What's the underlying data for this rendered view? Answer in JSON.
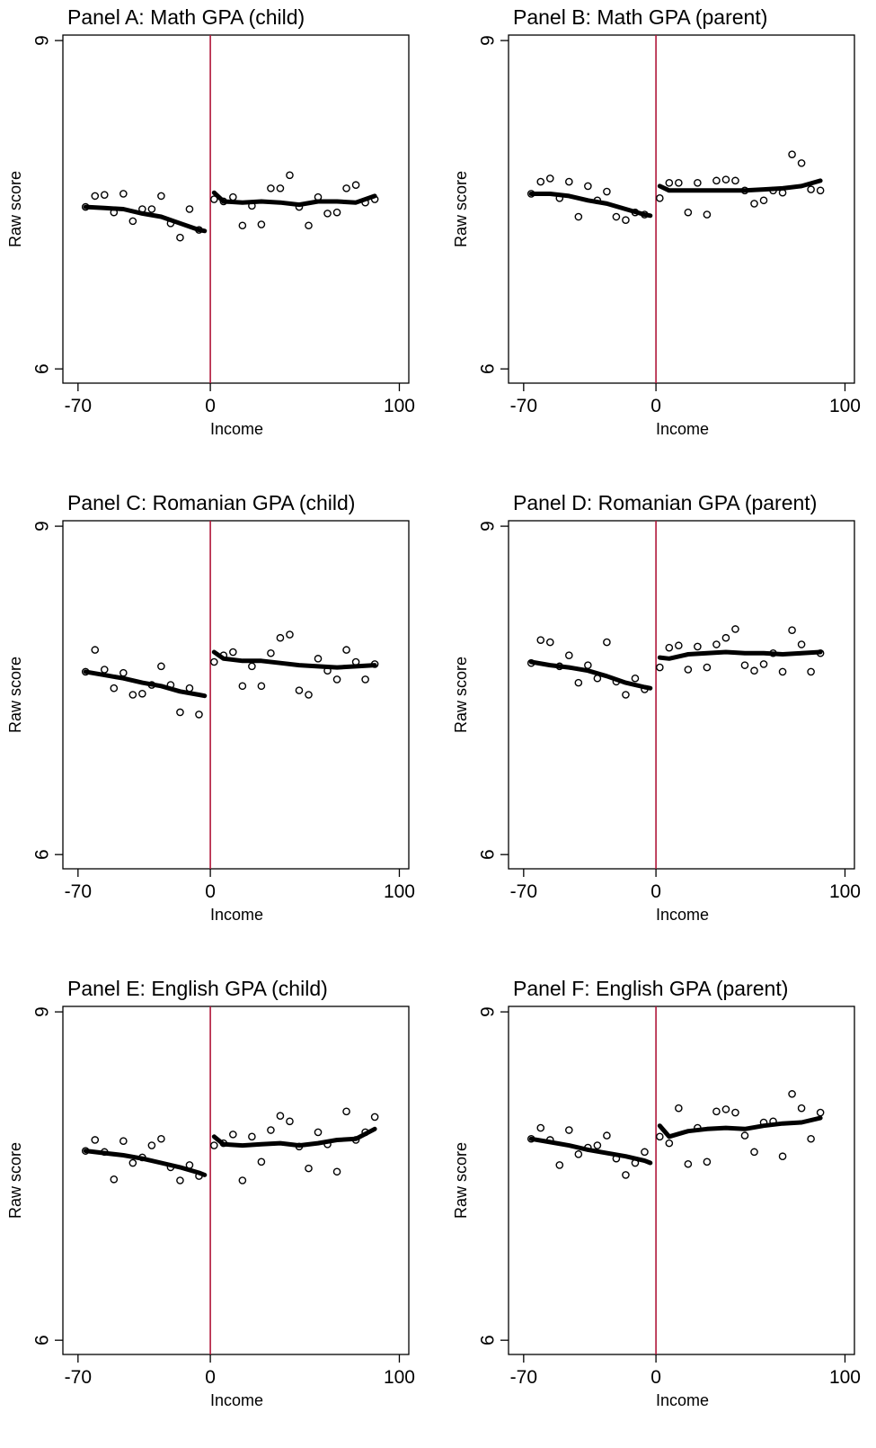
{
  "chart_data": [
    {
      "type": "scatter",
      "title": "Panel A: Math GPA (child)",
      "xlabel": "Income",
      "ylabel": "Raw score",
      "xlim": [
        -78,
        105
      ],
      "ylim": [
        5.87,
        9.05
      ],
      "xticks": [
        -70,
        0,
        100
      ],
      "yticks": [
        6,
        9
      ],
      "cutoff": 0,
      "points": [
        [
          -66,
          7.48
        ],
        [
          -61,
          7.58
        ],
        [
          -56,
          7.59
        ],
        [
          -51,
          7.43
        ],
        [
          -46,
          7.6
        ],
        [
          -41,
          7.35
        ],
        [
          -36,
          7.46
        ],
        [
          -31,
          7.46
        ],
        [
          -26,
          7.58
        ],
        [
          -21,
          7.33
        ],
        [
          -16,
          7.2
        ],
        [
          -11,
          7.46
        ],
        [
          -6,
          7.27
        ],
        [
          2,
          7.55
        ],
        [
          7,
          7.53
        ],
        [
          12,
          7.57
        ],
        [
          17,
          7.31
        ],
        [
          22,
          7.49
        ],
        [
          27,
          7.32
        ],
        [
          32,
          7.65
        ],
        [
          37,
          7.65
        ],
        [
          42,
          7.77
        ],
        [
          47,
          7.48
        ],
        [
          52,
          7.31
        ],
        [
          57,
          7.57
        ],
        [
          62,
          7.42
        ],
        [
          67,
          7.43
        ],
        [
          72,
          7.65
        ],
        [
          77,
          7.68
        ],
        [
          82,
          7.52
        ],
        [
          87,
          7.55
        ]
      ],
      "fit_left": [
        [
          -66,
          7.48
        ],
        [
          -56,
          7.47
        ],
        [
          -46,
          7.46
        ],
        [
          -36,
          7.42
        ],
        [
          -26,
          7.39
        ],
        [
          -16,
          7.33
        ],
        [
          -6,
          7.27
        ],
        [
          -3,
          7.26
        ]
      ],
      "fit_right": [
        [
          2,
          7.61
        ],
        [
          7,
          7.53
        ],
        [
          17,
          7.52
        ],
        [
          27,
          7.53
        ],
        [
          37,
          7.52
        ],
        [
          47,
          7.5
        ],
        [
          57,
          7.53
        ],
        [
          67,
          7.53
        ],
        [
          77,
          7.52
        ],
        [
          87,
          7.58
        ]
      ]
    },
    {
      "type": "scatter",
      "title": "Panel B: Math GPA (parent)",
      "xlabel": "Income",
      "ylabel": "Raw score",
      "xlim": [
        -78,
        105
      ],
      "ylim": [
        5.87,
        9.05
      ],
      "xticks": [
        -70,
        0,
        100
      ],
      "yticks": [
        6,
        9
      ],
      "cutoff": 0,
      "points": [
        [
          -66,
          7.6
        ],
        [
          -61,
          7.71
        ],
        [
          -56,
          7.74
        ],
        [
          -51,
          7.56
        ],
        [
          -46,
          7.71
        ],
        [
          -41,
          7.39
        ],
        [
          -36,
          7.67
        ],
        [
          -31,
          7.54
        ],
        [
          -26,
          7.62
        ],
        [
          -21,
          7.39
        ],
        [
          -16,
          7.36
        ],
        [
          -11,
          7.43
        ],
        [
          -6,
          7.41
        ],
        [
          2,
          7.56
        ],
        [
          7,
          7.7
        ],
        [
          12,
          7.7
        ],
        [
          17,
          7.43
        ],
        [
          22,
          7.7
        ],
        [
          27,
          7.41
        ],
        [
          32,
          7.72
        ],
        [
          37,
          7.73
        ],
        [
          42,
          7.72
        ],
        [
          47,
          7.63
        ],
        [
          52,
          7.51
        ],
        [
          57,
          7.54
        ],
        [
          62,
          7.63
        ],
        [
          67,
          7.61
        ],
        [
          72,
          7.96
        ],
        [
          77,
          7.88
        ],
        [
          82,
          7.64
        ],
        [
          87,
          7.63
        ]
      ],
      "fit_left": [
        [
          -66,
          7.6
        ],
        [
          -56,
          7.6
        ],
        [
          -46,
          7.58
        ],
        [
          -36,
          7.54
        ],
        [
          -26,
          7.51
        ],
        [
          -16,
          7.46
        ],
        [
          -6,
          7.41
        ],
        [
          -3,
          7.4
        ]
      ],
      "fit_right": [
        [
          2,
          7.67
        ],
        [
          7,
          7.63
        ],
        [
          17,
          7.63
        ],
        [
          27,
          7.63
        ],
        [
          37,
          7.63
        ],
        [
          47,
          7.63
        ],
        [
          57,
          7.64
        ],
        [
          67,
          7.65
        ],
        [
          77,
          7.67
        ],
        [
          87,
          7.72
        ]
      ]
    },
    {
      "type": "scatter",
      "title": "Panel C: Romanian GPA (child)",
      "xlabel": "Income",
      "ylabel": "Raw score",
      "xlim": [
        -78,
        105
      ],
      "ylim": [
        5.87,
        9.05
      ],
      "xticks": [
        -70,
        0,
        100
      ],
      "yticks": [
        6,
        9
      ],
      "cutoff": 0,
      "points": [
        [
          -66,
          7.67
        ],
        [
          -61,
          7.87
        ],
        [
          -56,
          7.69
        ],
        [
          -51,
          7.52
        ],
        [
          -46,
          7.66
        ],
        [
          -41,
          7.46
        ],
        [
          -36,
          7.47
        ],
        [
          -31,
          7.55
        ],
        [
          -26,
          7.72
        ],
        [
          -21,
          7.55
        ],
        [
          -16,
          7.3
        ],
        [
          -11,
          7.52
        ],
        [
          -6,
          7.28
        ],
        [
          2,
          7.76
        ],
        [
          7,
          7.82
        ],
        [
          12,
          7.85
        ],
        [
          17,
          7.54
        ],
        [
          22,
          7.72
        ],
        [
          27,
          7.54
        ],
        [
          32,
          7.84
        ],
        [
          37,
          7.98
        ],
        [
          42,
          8.01
        ],
        [
          47,
          7.5
        ],
        [
          52,
          7.46
        ],
        [
          57,
          7.79
        ],
        [
          62,
          7.68
        ],
        [
          67,
          7.6
        ],
        [
          72,
          7.87
        ],
        [
          77,
          7.76
        ],
        [
          82,
          7.6
        ],
        [
          87,
          7.74
        ]
      ],
      "fit_left": [
        [
          -66,
          7.67
        ],
        [
          -56,
          7.64
        ],
        [
          -46,
          7.61
        ],
        [
          -36,
          7.57
        ],
        [
          -26,
          7.54
        ],
        [
          -16,
          7.49
        ],
        [
          -6,
          7.46
        ],
        [
          -3,
          7.45
        ]
      ],
      "fit_right": [
        [
          2,
          7.85
        ],
        [
          7,
          7.79
        ],
        [
          17,
          7.77
        ],
        [
          27,
          7.77
        ],
        [
          37,
          7.75
        ],
        [
          47,
          7.73
        ],
        [
          57,
          7.72
        ],
        [
          67,
          7.71
        ],
        [
          77,
          7.72
        ],
        [
          87,
          7.73
        ]
      ]
    },
    {
      "type": "scatter",
      "title": "Panel D: Romanian GPA (parent)",
      "xlabel": "Income",
      "ylabel": "Raw score",
      "xlim": [
        -78,
        105
      ],
      "ylim": [
        5.87,
        9.05
      ],
      "xticks": [
        -70,
        0,
        100
      ],
      "yticks": [
        6,
        9
      ],
      "cutoff": 0,
      "points": [
        [
          -66,
          7.75
        ],
        [
          -61,
          7.96
        ],
        [
          -56,
          7.94
        ],
        [
          -51,
          7.72
        ],
        [
          -46,
          7.82
        ],
        [
          -41,
          7.57
        ],
        [
          -36,
          7.73
        ],
        [
          -31,
          7.61
        ],
        [
          -26,
          7.94
        ],
        [
          -21,
          7.58
        ],
        [
          -16,
          7.46
        ],
        [
          -11,
          7.61
        ],
        [
          -6,
          7.51
        ],
        [
          2,
          7.71
        ],
        [
          7,
          7.89
        ],
        [
          12,
          7.91
        ],
        [
          17,
          7.69
        ],
        [
          22,
          7.9
        ],
        [
          27,
          7.71
        ],
        [
          32,
          7.92
        ],
        [
          37,
          7.98
        ],
        [
          42,
          8.06
        ],
        [
          47,
          7.73
        ],
        [
          52,
          7.68
        ],
        [
          57,
          7.74
        ],
        [
          62,
          7.84
        ],
        [
          67,
          7.67
        ],
        [
          72,
          8.05
        ],
        [
          77,
          7.92
        ],
        [
          82,
          7.67
        ],
        [
          87,
          7.84
        ]
      ],
      "fit_left": [
        [
          -66,
          7.76
        ],
        [
          -56,
          7.73
        ],
        [
          -46,
          7.71
        ],
        [
          -36,
          7.68
        ],
        [
          -26,
          7.63
        ],
        [
          -16,
          7.57
        ],
        [
          -6,
          7.53
        ],
        [
          -3,
          7.52
        ]
      ],
      "fit_right": [
        [
          2,
          7.8
        ],
        [
          7,
          7.79
        ],
        [
          17,
          7.83
        ],
        [
          27,
          7.84
        ],
        [
          37,
          7.85
        ],
        [
          47,
          7.84
        ],
        [
          57,
          7.84
        ],
        [
          67,
          7.83
        ],
        [
          77,
          7.84
        ],
        [
          87,
          7.85
        ]
      ]
    },
    {
      "type": "scatter",
      "title": "Panel E: English GPA (child)",
      "xlabel": "Income",
      "ylabel": "Raw score",
      "xlim": [
        -78,
        105
      ],
      "ylim": [
        5.87,
        9.05
      ],
      "xticks": [
        -70,
        0,
        100
      ],
      "yticks": [
        6,
        9
      ],
      "cutoff": 0,
      "points": [
        [
          -66,
          7.73
        ],
        [
          -61,
          7.83
        ],
        [
          -56,
          7.72
        ],
        [
          -51,
          7.47
        ],
        [
          -46,
          7.82
        ],
        [
          -41,
          7.62
        ],
        [
          -36,
          7.67
        ],
        [
          -31,
          7.78
        ],
        [
          -26,
          7.84
        ],
        [
          -21,
          7.58
        ],
        [
          -16,
          7.46
        ],
        [
          -11,
          7.6
        ],
        [
          -6,
          7.5
        ],
        [
          2,
          7.78
        ],
        [
          7,
          7.8
        ],
        [
          12,
          7.88
        ],
        [
          17,
          7.46
        ],
        [
          22,
          7.86
        ],
        [
          27,
          7.63
        ],
        [
          32,
          7.92
        ],
        [
          37,
          8.05
        ],
        [
          42,
          8.0
        ],
        [
          47,
          7.77
        ],
        [
          52,
          7.57
        ],
        [
          57,
          7.9
        ],
        [
          62,
          7.79
        ],
        [
          67,
          7.54
        ],
        [
          72,
          8.09
        ],
        [
          77,
          7.83
        ],
        [
          82,
          7.9
        ],
        [
          87,
          8.04
        ]
      ],
      "fit_left": [
        [
          -66,
          7.73
        ],
        [
          -56,
          7.71
        ],
        [
          -46,
          7.69
        ],
        [
          -36,
          7.66
        ],
        [
          -26,
          7.62
        ],
        [
          -16,
          7.58
        ],
        [
          -6,
          7.53
        ],
        [
          -3,
          7.51
        ]
      ],
      "fit_right": [
        [
          2,
          7.86
        ],
        [
          7,
          7.79
        ],
        [
          17,
          7.78
        ],
        [
          27,
          7.79
        ],
        [
          37,
          7.8
        ],
        [
          47,
          7.78
        ],
        [
          57,
          7.8
        ],
        [
          67,
          7.83
        ],
        [
          77,
          7.84
        ],
        [
          87,
          7.93
        ]
      ]
    },
    {
      "type": "scatter",
      "title": "Panel F: English GPA (parent)",
      "xlabel": "Income",
      "ylabel": "Raw score",
      "xlim": [
        -78,
        105
      ],
      "ylim": [
        5.87,
        9.05
      ],
      "xticks": [
        -70,
        0,
        100
      ],
      "yticks": [
        6,
        9
      ],
      "cutoff": 0,
      "points": [
        [
          -66,
          7.84
        ],
        [
          -61,
          7.94
        ],
        [
          -56,
          7.83
        ],
        [
          -51,
          7.6
        ],
        [
          -46,
          7.92
        ],
        [
          -41,
          7.7
        ],
        [
          -36,
          7.76
        ],
        [
          -31,
          7.78
        ],
        [
          -26,
          7.87
        ],
        [
          -21,
          7.66
        ],
        [
          -16,
          7.51
        ],
        [
          -11,
          7.62
        ],
        [
          -6,
          7.72
        ],
        [
          2,
          7.86
        ],
        [
          7,
          7.8
        ],
        [
          12,
          8.12
        ],
        [
          17,
          7.61
        ],
        [
          22,
          7.94
        ],
        [
          27,
          7.63
        ],
        [
          32,
          8.09
        ],
        [
          37,
          8.11
        ],
        [
          42,
          8.08
        ],
        [
          47,
          7.87
        ],
        [
          52,
          7.72
        ],
        [
          57,
          7.99
        ],
        [
          62,
          8.0
        ],
        [
          67,
          7.68
        ],
        [
          72,
          8.25
        ],
        [
          77,
          8.12
        ],
        [
          82,
          7.84
        ],
        [
          87,
          8.08
        ]
      ],
      "fit_left": [
        [
          -66,
          7.84
        ],
        [
          -56,
          7.81
        ],
        [
          -46,
          7.78
        ],
        [
          -36,
          7.74
        ],
        [
          -26,
          7.71
        ],
        [
          -16,
          7.68
        ],
        [
          -6,
          7.64
        ],
        [
          -3,
          7.62
        ]
      ],
      "fit_right": [
        [
          2,
          7.96
        ],
        [
          7,
          7.86
        ],
        [
          17,
          7.91
        ],
        [
          27,
          7.93
        ],
        [
          37,
          7.94
        ],
        [
          47,
          7.93
        ],
        [
          57,
          7.96
        ],
        [
          67,
          7.98
        ],
        [
          77,
          7.99
        ],
        [
          87,
          8.03
        ]
      ]
    }
  ]
}
